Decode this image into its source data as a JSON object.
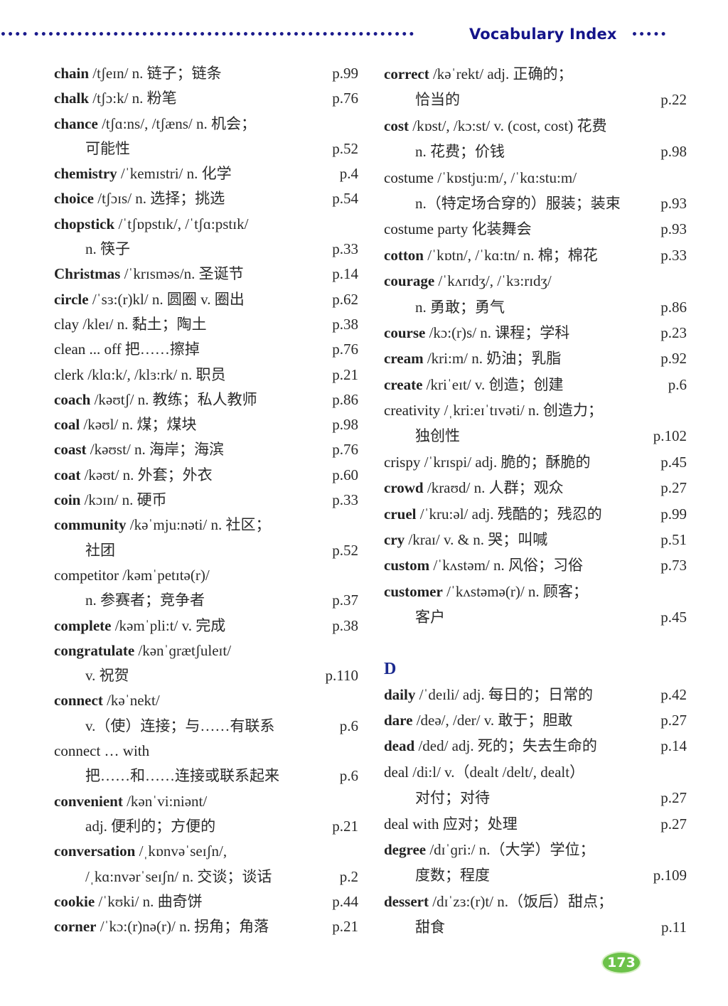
{
  "header": {
    "title": "Vocabulary Index",
    "dots_left": "•••• •••••••••••••••••••••••••••••••••••••••••••••••••••••",
    "dots_right": "•••••"
  },
  "colors": {
    "title": "#14148a",
    "section": "#1b2a8f",
    "badge": "#6cc24a"
  },
  "left_column": [
    {
      "head": "chain",
      "bold": true,
      "text": " /tʃeɪn/ n. 链子；链条",
      "page": "p.99"
    },
    {
      "head": "chalk",
      "bold": true,
      "text": " /tʃɔ:k/ n. 粉笔",
      "page": "p.76"
    },
    {
      "head": "chance",
      "bold": true,
      "text": " /tʃɑ:ns/, /tʃæns/ n. 机会；",
      "page": ""
    },
    {
      "head": "",
      "indent": true,
      "text": "可能性",
      "page": "p.52"
    },
    {
      "head": "chemistry",
      "bold": true,
      "text": " /ˈkemɪstri/ n. 化学",
      "page": "p.4"
    },
    {
      "head": "choice",
      "bold": true,
      "text": " /tʃɔɪs/ n. 选择；挑选",
      "page": "p.54"
    },
    {
      "head": "chopstick",
      "bold": true,
      "text": " /ˈtʃɒpstɪk/, /ˈtʃɑ:pstɪk/",
      "page": ""
    },
    {
      "head": "",
      "indent": true,
      "text": "n. 筷子",
      "page": "p.33"
    },
    {
      "head": "Christmas",
      "bold": true,
      "text": " /ˈkrɪsməs/n. 圣诞节",
      "page": "p.14"
    },
    {
      "head": "circle",
      "bold": true,
      "text": " /ˈsɜ:(r)kl/ n. 圆圈 v. 圈出",
      "page": "p.62"
    },
    {
      "head": "clay",
      "bold": false,
      "text": " /kleɪ/ n. 黏土；陶土",
      "page": "p.38"
    },
    {
      "head": "clean ... off",
      "bold": false,
      "text": " 把……擦掉",
      "page": "p.76"
    },
    {
      "head": "clerk",
      "bold": false,
      "text": " /klɑ:k/, /klɜ:rk/ n. 职员",
      "page": "p.21"
    },
    {
      "head": "coach",
      "bold": true,
      "text": " /kəʊtʃ/ n. 教练；私人教师",
      "page": "p.86"
    },
    {
      "head": "coal",
      "bold": true,
      "text": " /kəʊl/ n. 煤；煤块",
      "page": "p.98"
    },
    {
      "head": "coast",
      "bold": true,
      "text": " /kəʊst/ n. 海岸；海滨",
      "page": "p.76"
    },
    {
      "head": "coat",
      "bold": true,
      "text": " /kəʊt/ n. 外套；外衣",
      "page": "p.60"
    },
    {
      "head": "coin",
      "bold": true,
      "text": " /kɔɪn/ n. 硬币",
      "page": "p.33"
    },
    {
      "head": "community",
      "bold": true,
      "text": " /kəˈmju:nəti/ n. 社区；",
      "page": ""
    },
    {
      "head": "",
      "indent": true,
      "text": "社团",
      "page": "p.52"
    },
    {
      "head": "competitor",
      "bold": false,
      "text": " /kəmˈpetɪtə(r)/",
      "page": ""
    },
    {
      "head": "",
      "indent": true,
      "text": "n. 参赛者；竞争者",
      "page": "p.37"
    },
    {
      "head": "complete",
      "bold": true,
      "text": " /kəmˈpli:t/ v. 完成",
      "page": "p.38"
    },
    {
      "head": "congratulate",
      "bold": true,
      "text": " /kənˈɡrætʃuleɪt/",
      "page": ""
    },
    {
      "head": "",
      "indent": true,
      "text": "v. 祝贺",
      "page": "p.110"
    },
    {
      "head": "connect",
      "bold": true,
      "text": " /kəˈnekt/",
      "page": ""
    },
    {
      "head": "",
      "indent": true,
      "text": "v.（使）连接；与……有联系",
      "page": "p.6"
    },
    {
      "head": "connect … with",
      "bold": false,
      "text": "",
      "page": ""
    },
    {
      "head": "",
      "indent": true,
      "text": "把……和……连接或联系起来",
      "page": "p.6"
    },
    {
      "head": "convenient",
      "bold": true,
      "text": " /kənˈvi:niənt/",
      "page": ""
    },
    {
      "head": "",
      "indent": true,
      "text": "adj. 便利的；方便的",
      "page": "p.21"
    },
    {
      "head": "conversation",
      "bold": true,
      "text": " /ˌkɒnvəˈseɪʃn/,",
      "page": ""
    },
    {
      "head": "",
      "indent": true,
      "text": "/ˌkɑ:nvərˈseɪʃn/ n. 交谈；谈话",
      "page": "p.2"
    },
    {
      "head": "cookie",
      "bold": true,
      "text": " /ˈkʊki/ n. 曲奇饼",
      "page": "p.44"
    },
    {
      "head": "corner",
      "bold": true,
      "text": " /ˈkɔ:(r)nə(r)/ n. 拐角；角落",
      "page": "p.21"
    }
  ],
  "right_column": [
    {
      "head": "correct",
      "bold": true,
      "text": " /kəˈrekt/ adj. 正确的；",
      "page": ""
    },
    {
      "head": "",
      "indent": true,
      "text": "恰当的",
      "page": "p.22"
    },
    {
      "head": "cost",
      "bold": true,
      "text": " /kɒst/, /kɔ:st/ v. (cost, cost) 花费",
      "page": ""
    },
    {
      "head": "",
      "indent": true,
      "text": "n. 花费；价钱",
      "page": "p.98"
    },
    {
      "head": "costume",
      "bold": false,
      "text": " /ˈkɒstju:m/, /ˈkɑ:stu:m/",
      "page": ""
    },
    {
      "head": "",
      "indent": true,
      "text": "n.（特定场合穿的）服装；装束",
      "page": "p.93"
    },
    {
      "head": "costume party",
      "bold": false,
      "text": " 化装舞会",
      "page": "p.93"
    },
    {
      "head": "cotton",
      "bold": true,
      "text": " /ˈkɒtn/, /ˈkɑ:tn/ n. 棉；棉花",
      "page": "p.33"
    },
    {
      "head": "courage",
      "bold": true,
      "text": " /ˈkʌrɪdʒ/, /ˈkɜ:rɪdʒ/",
      "page": ""
    },
    {
      "head": "",
      "indent": true,
      "text": "n. 勇敢；勇气",
      "page": "p.86"
    },
    {
      "head": "course",
      "bold": true,
      "text": " /kɔ:(r)s/ n. 课程；学科",
      "page": "p.23"
    },
    {
      "head": "cream",
      "bold": true,
      "text": " /kri:m/ n. 奶油；乳脂",
      "page": "p.92"
    },
    {
      "head": "create",
      "bold": true,
      "text": " /kriˈeɪt/ v. 创造；创建",
      "page": "p.6"
    },
    {
      "head": "creativity",
      "bold": false,
      "text": " /ˌkri:eɪˈtɪvəti/ n. 创造力；",
      "page": ""
    },
    {
      "head": "",
      "indent": true,
      "text": "独创性",
      "page": "p.102"
    },
    {
      "head": "crispy",
      "bold": false,
      "text": " /ˈkrɪspi/ adj. 脆的；酥脆的",
      "page": "p.45"
    },
    {
      "head": "crowd",
      "bold": true,
      "text": " /kraʊd/ n. 人群；观众",
      "page": "p.27"
    },
    {
      "head": "cruel",
      "bold": true,
      "text": " /ˈkru:əl/ adj. 残酷的；残忍的",
      "page": "p.99"
    },
    {
      "head": "cry",
      "bold": true,
      "text": " /kraɪ/ v. & n. 哭；叫喊",
      "page": "p.51"
    },
    {
      "head": "custom",
      "bold": true,
      "text": " /ˈkʌstəm/ n. 风俗；习俗",
      "page": "p.73"
    },
    {
      "head": "customer",
      "bold": true,
      "text": " /ˈkʌstəmə(r)/ n. 顾客；",
      "page": ""
    },
    {
      "head": "",
      "indent": true,
      "text": "客户",
      "page": "p.45"
    }
  ],
  "section_d": {
    "letter": "D",
    "entries": [
      {
        "head": "daily",
        "bold": true,
        "text": " /ˈdeɪli/ adj. 每日的；日常的",
        "page": "p.42"
      },
      {
        "head": "dare",
        "bold": true,
        "text": " /deə/, /der/ v. 敢于；胆敢",
        "page": "p.27"
      },
      {
        "head": "dead",
        "bold": true,
        "text": " /ded/ adj. 死的；失去生命的",
        "page": "p.14"
      },
      {
        "head": "deal",
        "bold": false,
        "text": " /di:l/ v.（dealt /delt/, dealt）",
        "page": ""
      },
      {
        "head": "",
        "indent": true,
        "text": "对付；对待",
        "page": "p.27"
      },
      {
        "head": "deal with",
        "bold": false,
        "text": " 应对；处理",
        "page": "p.27"
      },
      {
        "head": "degree",
        "bold": true,
        "text": " /dɪˈɡri:/ n.（大学）学位；",
        "page": ""
      },
      {
        "head": "",
        "indent": true,
        "text": "度数；程度",
        "page": "p.109"
      },
      {
        "head": "dessert",
        "bold": true,
        "text": " /dɪˈzɜ:(r)t/ n.（饭后）甜点；",
        "page": ""
      },
      {
        "head": "",
        "indent": true,
        "text": "甜食",
        "page": "p.11"
      }
    ]
  },
  "page_number": "173"
}
